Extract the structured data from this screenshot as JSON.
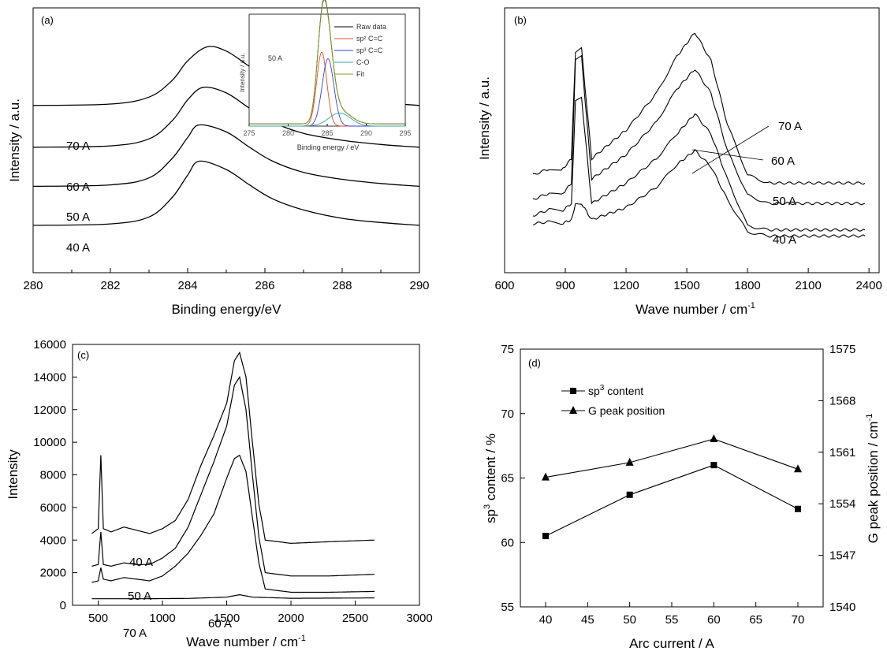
{
  "panels": {
    "a": {
      "label": "(a)",
      "xlabel": "Binding energy/eV",
      "ylabel": "Intensity / a.u.",
      "xticks": [
        "280",
        "282",
        "284",
        "286",
        "288",
        "290"
      ],
      "series_labels": [
        "70 A",
        "60 A",
        "50 A",
        "40 A"
      ],
      "inset": {
        "current": "50 A",
        "ylabel": "Intensity / a.u.",
        "xlabel": "Binding energy / eV",
        "xticks": [
          "275",
          "280",
          "285",
          "290",
          "295"
        ],
        "legend": [
          "Raw data",
          "sp² C=C",
          "sp³ C=C",
          "C-O",
          "Fit"
        ],
        "colors": [
          "#000000",
          "#e0502a",
          "#3a3fd0",
          "#3aa0a8",
          "#8aa020"
        ]
      }
    },
    "b": {
      "label": "(b)",
      "xlabel": "Wave number / cm",
      "xlabel_sup": "-1",
      "ylabel": "Intensity / a.u.",
      "xticks": [
        "600",
        "900",
        "1200",
        "1500",
        "1800",
        "2100",
        "2400"
      ],
      "series_labels": [
        "70 A",
        "60 A",
        "50 A",
        "40 A"
      ]
    },
    "c": {
      "label": "(c)",
      "xlabel": "Wave number / cm",
      "xlabel_sup": "-1",
      "ylabel": "Intensity",
      "xticks": [
        "500",
        "1000",
        "1500",
        "2000",
        "2500",
        "3000"
      ],
      "yticks": [
        "0",
        "2000",
        "4000",
        "6000",
        "8000",
        "10000",
        "12000",
        "14000",
        "16000"
      ],
      "series_labels": [
        "40 A",
        "50 A",
        "60 A",
        "70 A"
      ]
    },
    "d": {
      "label": "(d)",
      "xlabel": "Arc current / A",
      "ylabel_left_pre": "sp",
      "ylabel_left_sup": "3",
      "ylabel_left_post": " content / %",
      "ylabel_right": "G peak position / cm",
      "ylabel_right_sup": "-1",
      "xticks": [
        "40",
        "45",
        "50",
        "55",
        "60",
        "65",
        "70"
      ],
      "yticks_left": [
        "55",
        "60",
        "65",
        "70",
        "75"
      ],
      "yticks_right": [
        "1540",
        "1547",
        "1554",
        "1561",
        "1568",
        "1575"
      ],
      "legend_sp3_pre": "sp",
      "legend_sp3_sup": "3",
      "legend_sp3_post": " content",
      "legend_g": "G peak position"
    }
  },
  "chart_data": [
    {
      "type": "line",
      "panel": "a",
      "xlim": [
        280,
        290
      ],
      "series": [
        {
          "name": "70 A",
          "x": [
            280,
            282,
            283,
            283.6,
            284,
            284.5,
            285,
            285.6,
            286.2,
            287,
            288,
            289,
            290
          ],
          "y": [
            0.3,
            0.31,
            0.36,
            0.48,
            0.62,
            0.72,
            0.69,
            0.58,
            0.47,
            0.39,
            0.34,
            0.32,
            0.3
          ]
        },
        {
          "name": "60 A",
          "x": [
            280,
            282,
            283,
            283.6,
            284,
            284.4,
            285,
            285.6,
            286.2,
            287,
            288,
            289,
            290
          ],
          "y": [
            0.0,
            0.01,
            0.06,
            0.19,
            0.34,
            0.43,
            0.39,
            0.28,
            0.18,
            0.1,
            0.05,
            0.02,
            0.0
          ]
        },
        {
          "name": "50 A",
          "x": [
            280,
            282,
            283,
            283.6,
            284,
            284.3,
            285,
            285.6,
            286.2,
            287,
            288,
            289,
            290
          ],
          "y": [
            -0.28,
            -0.27,
            -0.22,
            -0.08,
            0.07,
            0.16,
            0.11,
            0.0,
            -0.1,
            -0.18,
            -0.23,
            -0.26,
            -0.28
          ]
        },
        {
          "name": "40 A",
          "x": [
            280,
            282,
            283,
            283.6,
            284,
            284.3,
            285,
            285.6,
            286.2,
            287,
            288,
            289,
            290
          ],
          "y": [
            -0.56,
            -0.55,
            -0.5,
            -0.36,
            -0.2,
            -0.1,
            -0.16,
            -0.27,
            -0.37,
            -0.45,
            -0.51,
            -0.54,
            -0.56
          ]
        }
      ]
    },
    {
      "type": "line",
      "panel": "b",
      "xlim": [
        600,
        2450
      ],
      "series": [
        {
          "name": "70 A",
          "x": [
            740,
            820,
            880,
            930,
            950,
            980,
            1030,
            1200,
            1350,
            1450,
            1540,
            1620,
            1700,
            1800,
            1900,
            2100,
            2380
          ],
          "y": [
            0.3,
            0.33,
            0.32,
            0.38,
            0.9,
            0.92,
            0.38,
            0.52,
            0.7,
            0.88,
            1.0,
            0.86,
            0.55,
            0.3,
            0.26,
            0.26,
            0.26
          ]
        },
        {
          "name": "60 A",
          "x": [
            740,
            820,
            880,
            930,
            950,
            980,
            1030,
            1200,
            1350,
            1450,
            1540,
            1620,
            1700,
            1800,
            1900,
            2100,
            2380
          ],
          "y": [
            0.18,
            0.21,
            0.2,
            0.26,
            0.86,
            0.88,
            0.28,
            0.4,
            0.56,
            0.72,
            0.82,
            0.7,
            0.42,
            0.2,
            0.16,
            0.16,
            0.16
          ]
        },
        {
          "name": "50 A",
          "x": [
            740,
            820,
            880,
            930,
            950,
            980,
            1030,
            1200,
            1350,
            1450,
            1540,
            1620,
            1700,
            1800,
            1900,
            2100,
            2380
          ],
          "y": [
            0.1,
            0.13,
            0.12,
            0.16,
            0.66,
            0.68,
            0.16,
            0.26,
            0.38,
            0.5,
            0.6,
            0.5,
            0.28,
            0.05,
            0.03,
            0.03,
            0.03
          ]
        },
        {
          "name": "40 A",
          "x": [
            740,
            820,
            880,
            930,
            950,
            980,
            1030,
            1200,
            1350,
            1450,
            1540,
            1620,
            1700,
            1800,
            1900,
            2100,
            2380
          ],
          "y": [
            0.06,
            0.07,
            0.06,
            0.08,
            0.16,
            0.16,
            0.08,
            0.14,
            0.24,
            0.35,
            0.42,
            0.34,
            0.18,
            0.02,
            0.0,
            0.0,
            0.0
          ]
        }
      ]
    },
    {
      "type": "line",
      "panel": "c",
      "xlim": [
        300,
        3000
      ],
      "ylim": [
        0,
        16000
      ],
      "series": [
        {
          "name": "40 A",
          "x": [
            450,
            500,
            520,
            540,
            600,
            700,
            800,
            900,
            1000,
            1100,
            1200,
            1300,
            1400,
            1500,
            1560,
            1600,
            1650,
            1700,
            1750,
            1800,
            2000,
            2300,
            2650
          ],
          "y": [
            4400,
            4700,
            9200,
            4700,
            4500,
            4800,
            4600,
            4400,
            4700,
            5200,
            6500,
            8600,
            10400,
            12400,
            15000,
            15500,
            14000,
            10000,
            6200,
            4000,
            3800,
            3900,
            4000
          ]
        },
        {
          "name": "50 A",
          "x": [
            450,
            500,
            520,
            540,
            600,
            700,
            800,
            900,
            1000,
            1100,
            1200,
            1300,
            1400,
            1500,
            1560,
            1600,
            1650,
            1700,
            1750,
            1800,
            2000,
            2300,
            2650
          ],
          "y": [
            2400,
            2500,
            4500,
            2500,
            2400,
            2600,
            2500,
            2500,
            2900,
            3500,
            4800,
            6800,
            8800,
            11000,
            13500,
            14000,
            12000,
            8000,
            4200,
            2000,
            1800,
            1800,
            1900
          ]
        },
        {
          "name": "60 A",
          "x": [
            450,
            500,
            520,
            540,
            600,
            700,
            800,
            900,
            1000,
            1100,
            1200,
            1300,
            1400,
            1500,
            1560,
            1600,
            1650,
            1700,
            1750,
            1800,
            2000,
            2300,
            2650
          ],
          "y": [
            1400,
            1500,
            2300,
            1600,
            1500,
            1700,
            1600,
            1500,
            1800,
            2400,
            3200,
            4300,
            5600,
            7800,
            9000,
            9200,
            8200,
            5400,
            2600,
            1000,
            800,
            800,
            850
          ]
        },
        {
          "name": "70 A",
          "x": [
            450,
            800,
            1200,
            1500,
            1600,
            1700,
            2000,
            2650
          ],
          "y": [
            400,
            400,
            420,
            500,
            650,
            500,
            430,
            450
          ]
        }
      ]
    },
    {
      "type": "line",
      "panel": "d",
      "xlim": [
        37,
        73
      ],
      "ylim_left": [
        55,
        75
      ],
      "ylim_right": [
        1540,
        1575
      ],
      "x": [
        40,
        50,
        60,
        70
      ],
      "series": [
        {
          "name": "sp3 content",
          "axis": "left",
          "marker": "square",
          "values": [
            60.5,
            63.7,
            66.0,
            62.6
          ]
        },
        {
          "name": "G peak position",
          "axis": "right",
          "marker": "triangle",
          "values": [
            1557.6,
            1559.6,
            1562.8,
            1558.7
          ]
        }
      ]
    }
  ]
}
